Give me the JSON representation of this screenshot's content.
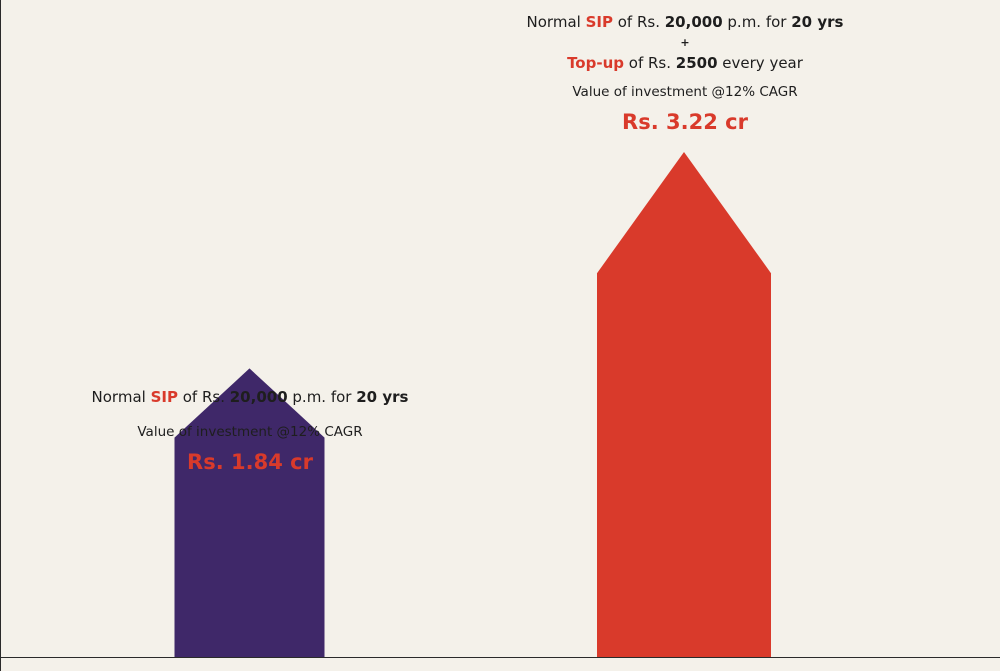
{
  "chart_data": {
    "type": "bar",
    "categories": [
      "Normal SIP",
      "SIP with Top-up"
    ],
    "values": [
      1.84,
      3.22
    ],
    "unit": "cr",
    "colors": [
      "#3f2869",
      "#d93a2b"
    ],
    "accent_color": "#d93a2b",
    "ylim": [
      0,
      3.22
    ],
    "grid": false,
    "legend": "none"
  },
  "bar_a": {
    "pre": "Normal ",
    "sip": "SIP",
    "mid": " of Rs. ",
    "amount": "20,000",
    "pm": " p.m. for ",
    "years": "20 yrs",
    "sub": "Value of investment @12% CAGR",
    "value_label": "Rs. 1.84 cr"
  },
  "bar_b": {
    "pre": "Normal ",
    "sip": "SIP",
    "mid": " of Rs. ",
    "amount": "20,000",
    "pm": " p.m. for ",
    "years": "20 yrs",
    "plus": "+",
    "topup": "Top-up",
    "topup_mid": " of Rs. ",
    "topup_amount": "2500",
    "topup_tail": " every year",
    "sub": "Value of investment @12% CAGR",
    "value_label": "Rs. 3.22 cr"
  }
}
